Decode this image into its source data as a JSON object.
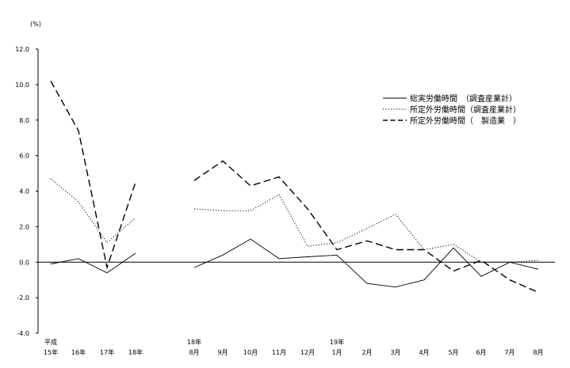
{
  "chart_data": {
    "type": "line",
    "unit_label": "(%)",
    "ylim": [
      -4.0,
      12.0
    ],
    "y_ticks": [
      "12.0",
      "10.0",
      "8.0",
      "6.0",
      "4.0",
      "2.0",
      "0.0",
      "-2.0",
      "-4.0"
    ],
    "x_labels": [
      {
        "top": "平成",
        "bottom": "15年"
      },
      {
        "top": "",
        "bottom": "16年"
      },
      {
        "top": "",
        "bottom": "17年"
      },
      {
        "top": "",
        "bottom": "18年"
      },
      {
        "top": "18年",
        "bottom": "8月"
      },
      {
        "top": "",
        "bottom": "9月"
      },
      {
        "top": "",
        "bottom": "10月"
      },
      {
        "top": "",
        "bottom": "11月"
      },
      {
        "top": "",
        "bottom": "12月"
      },
      {
        "top": "19年",
        "bottom": "1月"
      },
      {
        "top": "",
        "bottom": "2月"
      },
      {
        "top": "",
        "bottom": "3月"
      },
      {
        "top": "",
        "bottom": "4月"
      },
      {
        "top": "",
        "bottom": "5月"
      },
      {
        "top": "",
        "bottom": "6月"
      },
      {
        "top": "",
        "bottom": "7月"
      },
      {
        "top": "",
        "bottom": "8月"
      }
    ],
    "series": [
      {
        "name": "総実労働時間　（調査産業計）",
        "style": "solid",
        "annual": [
          -0.1,
          0.2,
          -0.6,
          0.5
        ],
        "monthly": [
          -0.3,
          0.4,
          1.3,
          0.2,
          0.3,
          0.4,
          -1.2,
          -1.4,
          -1.0,
          0.8,
          -0.8,
          0.0,
          -0.4
        ]
      },
      {
        "name": "所定外労働時間（調査産業計）",
        "style": "dotted",
        "annual": [
          4.7,
          3.4,
          1.1,
          2.5
        ],
        "monthly": [
          3.0,
          2.9,
          2.9,
          3.8,
          0.9,
          1.1,
          1.9,
          2.7,
          0.7,
          1.0,
          0.0,
          0.0,
          0.1
        ]
      },
      {
        "name": "所定外労働時間（　製造業　）",
        "style": "dashed",
        "annual": [
          10.2,
          7.4,
          -0.3,
          4.5
        ],
        "monthly": [
          4.6,
          5.7,
          4.3,
          4.8,
          3.0,
          0.7,
          1.2,
          0.7,
          0.7,
          -0.5,
          0.1,
          -1.0,
          -1.7
        ]
      }
    ],
    "legend_position": "top-right",
    "grid": false
  }
}
